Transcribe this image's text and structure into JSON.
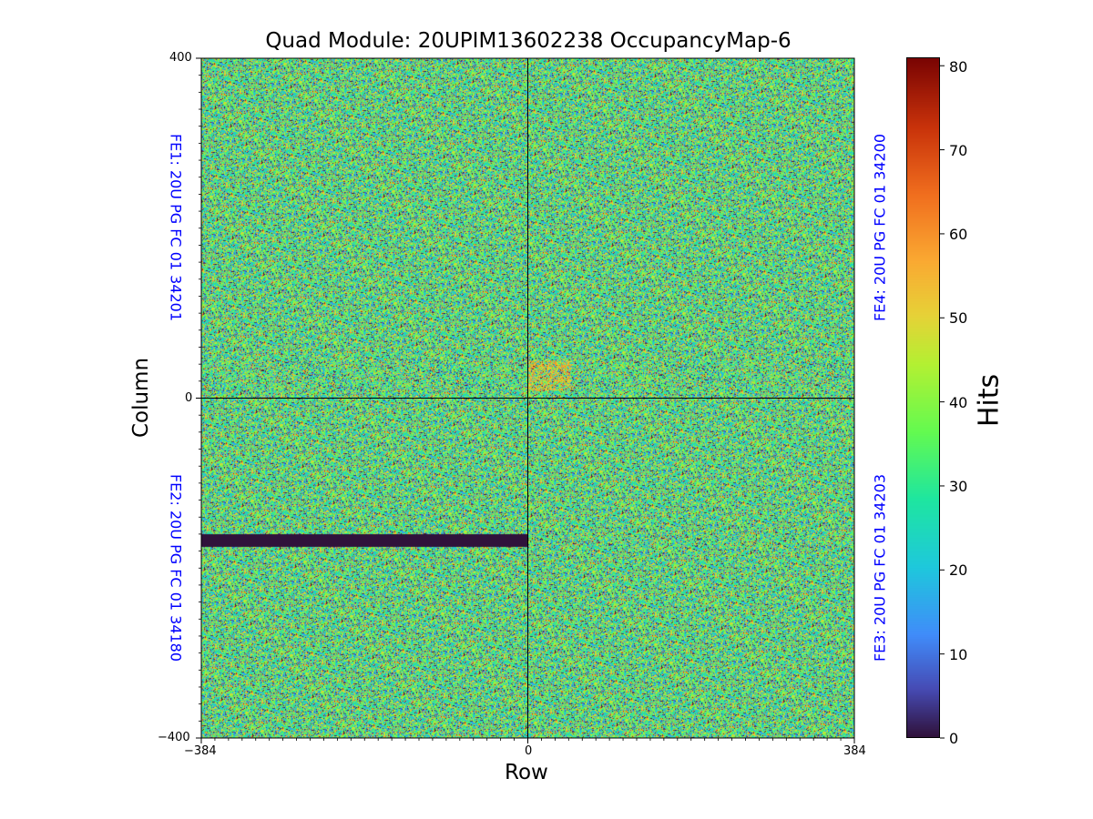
{
  "chart_data": {
    "type": "heatmap",
    "title": "Quad Module: 20UPIM13602238 OccupancyMap-6",
    "xlabel": "Row",
    "ylabel": "Column",
    "xlim": [
      -384,
      384
    ],
    "ylim": [
      -400,
      400
    ],
    "x_ticks": [
      "−384",
      "0",
      "384"
    ],
    "y_ticks": [
      "400",
      "0",
      "−400"
    ],
    "colorbar": {
      "label": "Hits",
      "range": [
        0,
        81
      ],
      "ticks": [
        "0",
        "10",
        "20",
        "30",
        "40",
        "50",
        "60",
        "70",
        "80"
      ],
      "colormap": "turbo"
    },
    "front_ends": [
      {
        "label": "FE1: 20U PG FC 01 34201",
        "quadrant": "top-left"
      },
      {
        "label": "FE4: 20U PG FC 01 34200",
        "quadrant": "top-right"
      },
      {
        "label": "FE2: 20U PG FC 01 34180",
        "quadrant": "bottom-left"
      },
      {
        "label": "FE3: 20U PG FC 01 34203",
        "quadrant": "bottom-right"
      }
    ],
    "dead_region": {
      "x": [
        -384,
        0
      ],
      "y": [
        -175,
        -160
      ],
      "hits": 0
    },
    "hot_region": {
      "x": [
        0,
        50
      ],
      "y": [
        10,
        45
      ],
      "typical_hits": 55
    },
    "typical_hits_mean": 33,
    "quadrant_dividers": {
      "x": 0,
      "y": 0
    }
  }
}
